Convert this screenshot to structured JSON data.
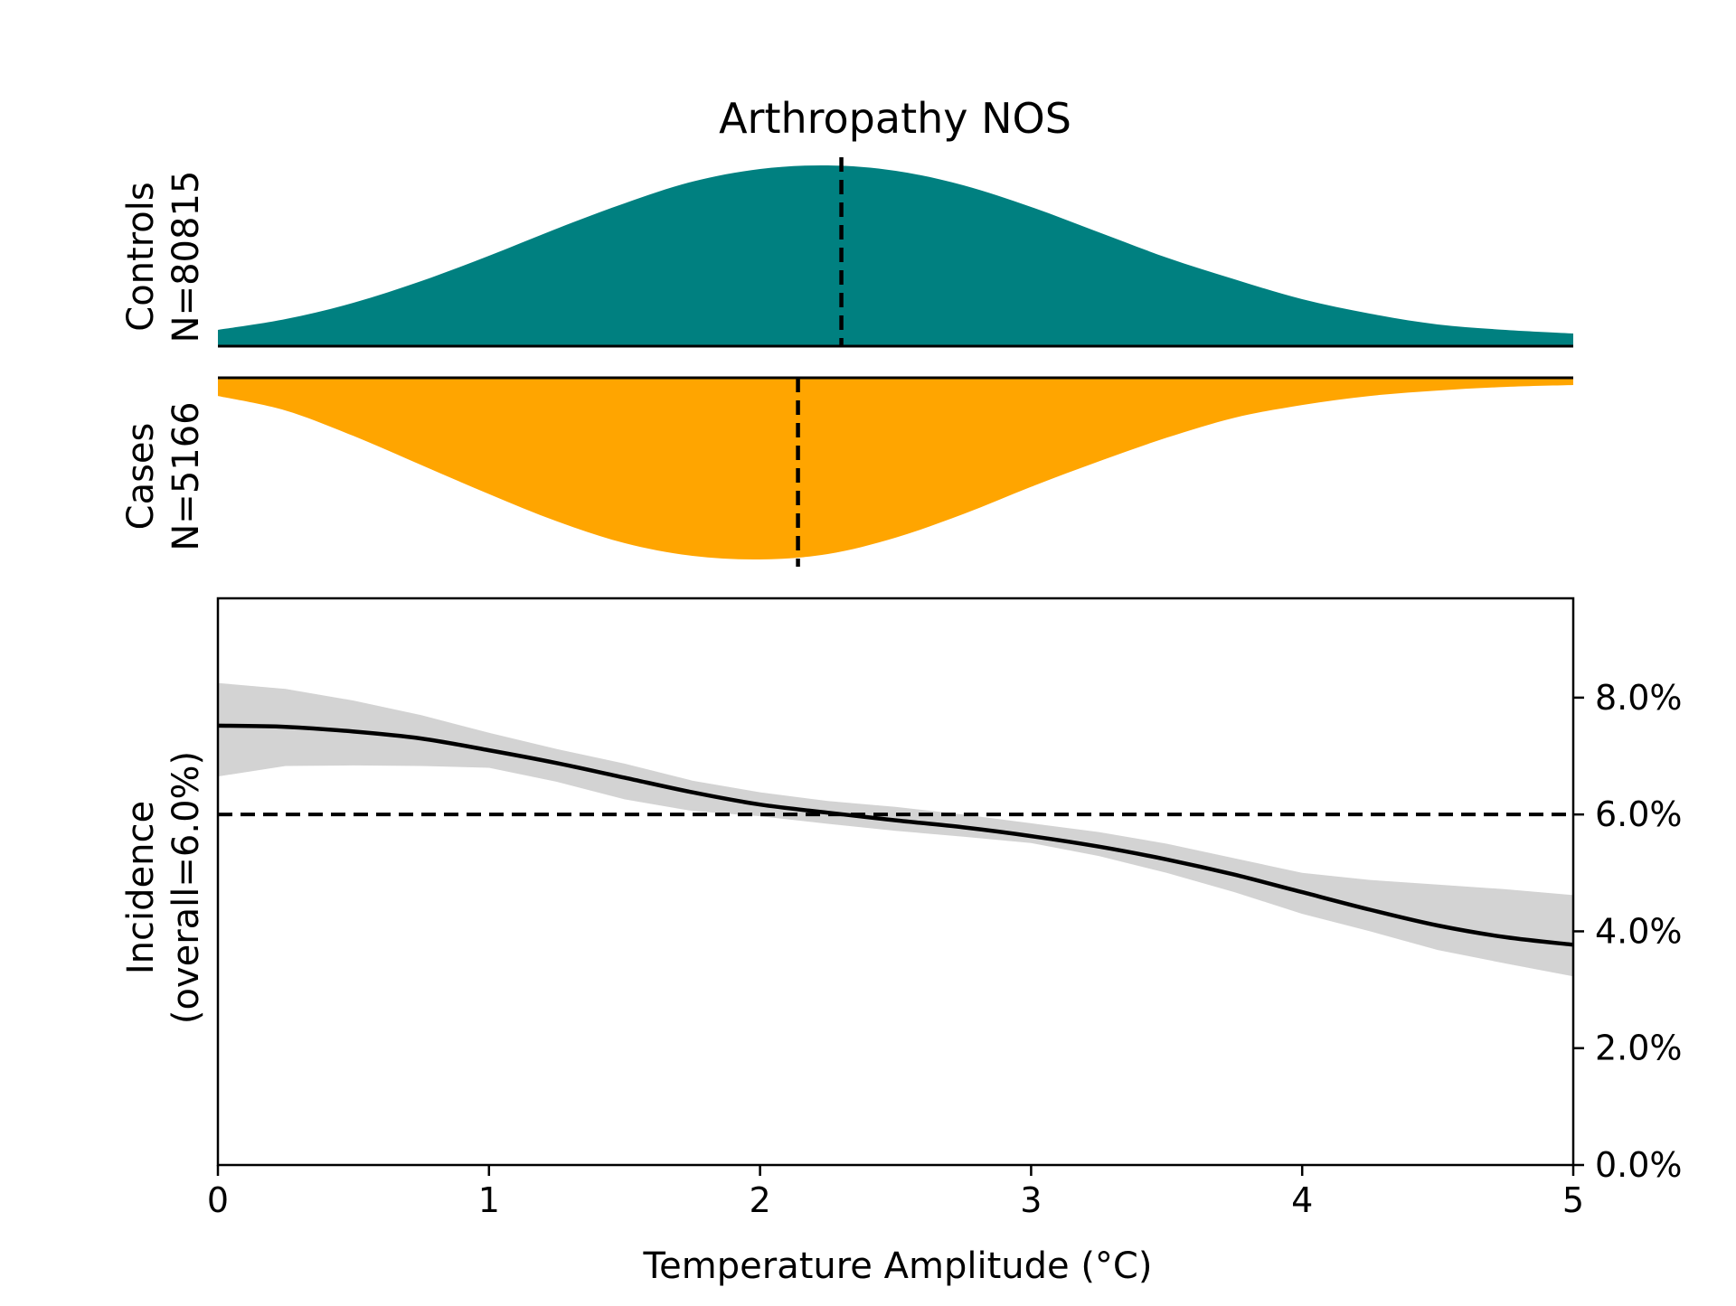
{
  "chart_data": {
    "title": "Arthropathy NOS",
    "colors": {
      "controls": "#008080",
      "cases": "#FFA500",
      "band": "#d3d3d3",
      "line": "#000000"
    },
    "distributions": {
      "type": "area",
      "x_range": [
        0,
        5
      ],
      "controls": {
        "label_line1": "Controls",
        "label_line2": "N=80815",
        "median": 2.3,
        "x": [
          0,
          0.25,
          0.5,
          0.75,
          1.0,
          1.25,
          1.5,
          1.75,
          2.0,
          2.25,
          2.5,
          2.75,
          3.0,
          3.25,
          3.5,
          3.75,
          4.0,
          4.25,
          4.5,
          4.75,
          5.0
        ],
        "density": [
          0.09,
          0.15,
          0.24,
          0.36,
          0.5,
          0.65,
          0.79,
          0.91,
          0.98,
          1.0,
          0.97,
          0.89,
          0.77,
          0.63,
          0.49,
          0.37,
          0.26,
          0.18,
          0.12,
          0.09,
          0.07
        ]
      },
      "cases": {
        "label_line1": "Cases",
        "label_line2": "N=5166",
        "median": 2.14,
        "x": [
          0,
          0.25,
          0.5,
          0.75,
          1.0,
          1.25,
          1.5,
          1.75,
          2.0,
          2.25,
          2.5,
          2.75,
          3.0,
          3.25,
          3.5,
          3.75,
          4.0,
          4.25,
          4.5,
          4.75,
          5.0
        ],
        "density": [
          0.1,
          0.18,
          0.32,
          0.48,
          0.64,
          0.79,
          0.91,
          0.98,
          1.0,
          0.97,
          0.88,
          0.75,
          0.6,
          0.46,
          0.33,
          0.22,
          0.15,
          0.1,
          0.07,
          0.05,
          0.04
        ]
      }
    },
    "incidence": {
      "type": "line",
      "ylabel_line1": "Incidence",
      "ylabel_line2": "(overall=6.0%)",
      "xlabel": "Temperature Amplitude (°C)",
      "xlim": [
        0,
        5
      ],
      "ylim": [
        0,
        9.7
      ],
      "xticks": [
        0,
        1,
        2,
        3,
        4,
        5
      ],
      "xtick_labels": [
        "0",
        "1",
        "2",
        "3",
        "4",
        "5"
      ],
      "yticks": [
        0,
        2,
        4,
        6,
        8
      ],
      "ytick_labels": [
        "0.0%",
        "2.0%",
        "4.0%",
        "6.0%",
        "8.0%"
      ],
      "overall": 6.0,
      "x": [
        0,
        0.25,
        0.5,
        0.75,
        1.0,
        1.25,
        1.5,
        1.75,
        2.0,
        2.25,
        2.5,
        2.75,
        3.0,
        3.25,
        3.5,
        3.75,
        4.0,
        4.25,
        4.5,
        4.75,
        5.0
      ],
      "y": [
        7.52,
        7.5,
        7.42,
        7.3,
        7.1,
        6.88,
        6.63,
        6.38,
        6.17,
        6.03,
        5.9,
        5.78,
        5.63,
        5.45,
        5.23,
        4.97,
        4.67,
        4.37,
        4.1,
        3.9,
        3.77
      ],
      "ci_lower": [
        6.65,
        6.83,
        6.84,
        6.83,
        6.8,
        6.56,
        6.26,
        6.06,
        5.97,
        5.84,
        5.72,
        5.62,
        5.51,
        5.29,
        5.0,
        4.67,
        4.3,
        4.0,
        3.68,
        3.45,
        3.23
      ],
      "ci_upper": [
        8.25,
        8.15,
        7.95,
        7.7,
        7.4,
        7.12,
        6.87,
        6.58,
        6.38,
        6.23,
        6.13,
        6.0,
        5.85,
        5.7,
        5.5,
        5.25,
        5.0,
        4.88,
        4.8,
        4.72,
        4.62
      ]
    }
  }
}
